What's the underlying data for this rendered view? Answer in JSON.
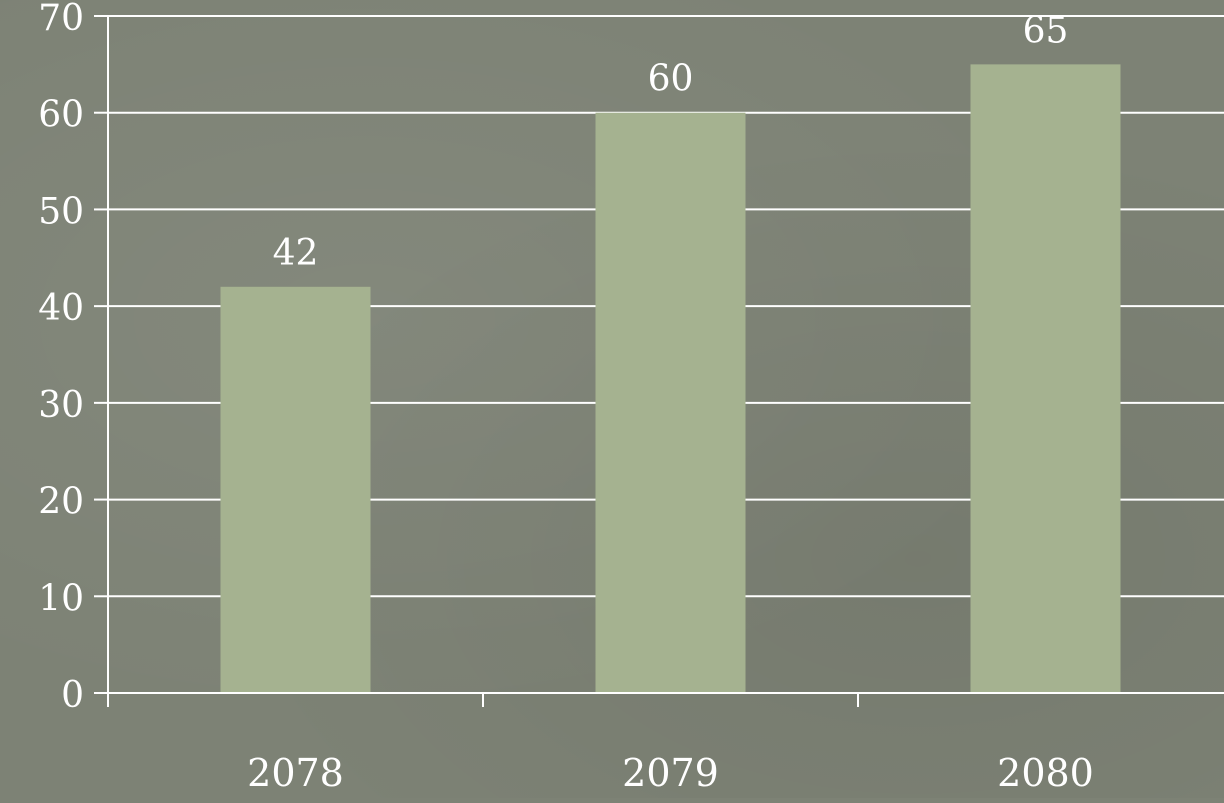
{
  "colors": {
    "background": "#7d8275",
    "bar": "#a5b290",
    "gridline": "#ffffff",
    "text": "#ffffff"
  },
  "chart_data": {
    "type": "bar",
    "title": "",
    "xlabel": "",
    "ylabel": "",
    "categories": [
      "2078",
      "2079",
      "2080"
    ],
    "values": [
      42,
      60,
      65
    ],
    "data_labels": [
      "42",
      "60",
      "65"
    ],
    "ylim": [
      0,
      70
    ],
    "yticks": [
      "0",
      "10",
      "20",
      "30",
      "40",
      "50",
      "60",
      "70"
    ],
    "grid": true,
    "legend": "none"
  }
}
